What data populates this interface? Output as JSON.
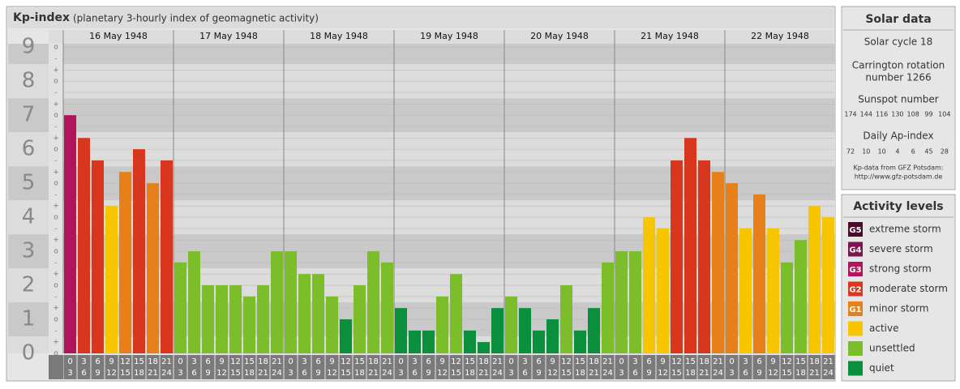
{
  "chart_data": {
    "type": "bar",
    "title": "Kp-index",
    "subtitle": "(planetary 3-hourly index of geomagnetic activity)",
    "categories": [
      [
        "0",
        "3"
      ],
      [
        "3",
        "6"
      ],
      [
        "6",
        "9"
      ],
      [
        "9",
        "12"
      ],
      [
        "12",
        "15"
      ],
      [
        "15",
        "18"
      ],
      [
        "18",
        "21"
      ],
      [
        "21",
        "24"
      ]
    ],
    "series": [
      {
        "name": "16 May 1948",
        "values": [
          7.0,
          6.33,
          5.67,
          4.33,
          5.33,
          6.0,
          5.0,
          5.67
        ],
        "colors": [
          "#b0145a",
          "#d9361e",
          "#d9361e",
          "#f7c600",
          "#e8801a",
          "#d9361e",
          "#e8801a",
          "#d9361e"
        ]
      },
      {
        "name": "17 May 1948",
        "values": [
          2.67,
          3.0,
          2.0,
          2.0,
          2.0,
          1.67,
          2.0,
          3.0
        ],
        "colors": [
          "#7cbd2a",
          "#7cbd2a",
          "#7cbd2a",
          "#7cbd2a",
          "#7cbd2a",
          "#7cbd2a",
          "#7cbd2a",
          "#7cbd2a"
        ]
      },
      {
        "name": "18 May 1948",
        "values": [
          3.0,
          2.33,
          2.33,
          1.67,
          1.0,
          2.0,
          3.0,
          2.67
        ],
        "colors": [
          "#7cbd2a",
          "#7cbd2a",
          "#7cbd2a",
          "#7cbd2a",
          "#0a8f3c",
          "#7cbd2a",
          "#7cbd2a",
          "#7cbd2a"
        ]
      },
      {
        "name": "19 May 1948",
        "values": [
          1.33,
          0.67,
          0.67,
          1.67,
          2.33,
          0.67,
          0.33,
          1.33
        ],
        "colors": [
          "#0a8f3c",
          "#0a8f3c",
          "#0a8f3c",
          "#7cbd2a",
          "#7cbd2a",
          "#0a8f3c",
          "#0a8f3c",
          "#0a8f3c"
        ]
      },
      {
        "name": "20 May 1948",
        "values": [
          1.67,
          1.33,
          0.67,
          1.0,
          2.0,
          0.67,
          1.33,
          2.67
        ],
        "colors": [
          "#7cbd2a",
          "#0a8f3c",
          "#0a8f3c",
          "#0a8f3c",
          "#7cbd2a",
          "#0a8f3c",
          "#0a8f3c",
          "#7cbd2a"
        ]
      },
      {
        "name": "21 May 1948",
        "values": [
          3.0,
          3.0,
          4.0,
          3.67,
          5.67,
          6.33,
          5.67,
          5.33
        ],
        "colors": [
          "#7cbd2a",
          "#7cbd2a",
          "#f7c600",
          "#f7c600",
          "#d9361e",
          "#d9361e",
          "#d9361e",
          "#e8801a"
        ]
      },
      {
        "name": "22 May 1948",
        "values": [
          5.0,
          3.67,
          4.67,
          3.67,
          2.67,
          3.33,
          4.33,
          4.0
        ],
        "colors": [
          "#e8801a",
          "#f7c600",
          "#e8801a",
          "#f7c600",
          "#7cbd2a",
          "#7cbd2a",
          "#f7c600",
          "#f7c600"
        ]
      }
    ],
    "ylim": [
      0,
      9.1
    ],
    "yticks": [
      0,
      1,
      2,
      3,
      4,
      5,
      6,
      7,
      8,
      9
    ],
    "minor_ticks": [
      {
        "value": 0,
        "label": "o"
      },
      {
        "value": 0.33,
        "label": "+"
      },
      {
        "value": 0.67,
        "label": "-"
      },
      {
        "value": 1,
        "label": "o"
      },
      {
        "value": 1.33,
        "label": "+"
      },
      {
        "value": 1.67,
        "label": "-"
      },
      {
        "value": 2,
        "label": "o"
      },
      {
        "value": 2.33,
        "label": "+"
      },
      {
        "value": 2.67,
        "label": "-"
      },
      {
        "value": 3,
        "label": "o"
      },
      {
        "value": 3.33,
        "label": "+"
      },
      {
        "value": 3.67,
        "label": "-"
      },
      {
        "value": 4,
        "label": "o"
      },
      {
        "value": 4.33,
        "label": "+"
      },
      {
        "value": 4.67,
        "label": "-"
      },
      {
        "value": 5,
        "label": "o"
      },
      {
        "value": 5.33,
        "label": "+"
      },
      {
        "value": 5.67,
        "label": "-"
      },
      {
        "value": 6,
        "label": "o"
      },
      {
        "value": 6.33,
        "label": "+"
      },
      {
        "value": 6.67,
        "label": "-"
      },
      {
        "value": 7,
        "label": "o"
      },
      {
        "value": 7.33,
        "label": "+"
      },
      {
        "value": 7.67,
        "label": "-"
      },
      {
        "value": 8,
        "label": "o"
      },
      {
        "value": 8.33,
        "label": "+"
      },
      {
        "value": 8.67,
        "label": "-"
      },
      {
        "value": 9,
        "label": "o"
      }
    ],
    "grid": true
  },
  "solar": {
    "title": "Solar data",
    "cycle": "Solar cycle 18",
    "carrington": [
      "Carrington rotation",
      "number 1266"
    ],
    "sunspot_title": "Sunspot number",
    "sunspot": [
      174,
      144,
      116,
      130,
      108,
      99,
      104
    ],
    "ap_title": "Daily Ap-index",
    "ap": [
      72,
      10,
      10,
      4,
      6,
      45,
      28
    ],
    "source": [
      "Kp-data from GFZ Potsdam:",
      "http://www.gfz-potsdam.de"
    ]
  },
  "activity": {
    "title": "Activity levels",
    "levels": [
      {
        "code": "G5",
        "label": "extreme storm",
        "color": "#4a0a2a"
      },
      {
        "code": "G4",
        "label": "severe storm",
        "color": "#7c1450"
      },
      {
        "code": "G3",
        "label": "strong storm",
        "color": "#b0145a"
      },
      {
        "code": "G2",
        "label": "moderate storm",
        "color": "#d9361e"
      },
      {
        "code": "G1",
        "label": "minor storm",
        "color": "#e8801a"
      },
      {
        "label": "active",
        "color": "#f7c600"
      },
      {
        "label": "unsettled",
        "color": "#7cbd2a"
      },
      {
        "label": "quiet",
        "color": "#0a8f3c"
      }
    ]
  }
}
